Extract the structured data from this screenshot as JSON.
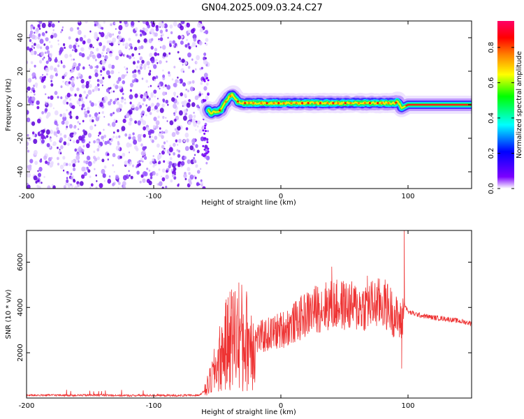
{
  "title": "GN04.2025.009.03.24.C27",
  "chart_data": [
    {
      "type": "heatmap",
      "xlabel": "Height of straight line (km)",
      "ylabel": "Frequency (Hz)",
      "xlim": [
        -200,
        150
      ],
      "ylim": [
        -50,
        50
      ],
      "x_ticks": [
        -200,
        -100,
        0,
        100
      ],
      "y_ticks": [
        -40,
        -20,
        0,
        20,
        40
      ],
      "noise_region_x": [
        -200,
        -57
      ],
      "signal_track": {
        "x": [
          -57,
          -55,
          -52,
          -50,
          -47,
          -45,
          -43,
          -40,
          -38,
          -36,
          -34,
          -30,
          -25,
          -20,
          -10,
          0,
          20,
          40,
          60,
          80,
          90,
          92,
          95,
          100,
          150
        ],
        "y": [
          -3,
          -5,
          -4,
          -4,
          -3,
          0,
          2,
          5,
          6,
          4,
          2,
          1,
          1,
          1,
          1,
          1,
          1,
          1,
          1,
          1,
          1,
          2,
          -2,
          0,
          0
        ]
      },
      "colorbar": {
        "label": "Normalized spectral amplitude",
        "range": [
          0,
          0.95
        ],
        "ticks": [
          "0.0",
          "0.2",
          "0.4",
          "0.6",
          "0.8"
        ],
        "colors": [
          "#ffffff",
          "#7b00ff",
          "#0000ff",
          "#00ffff",
          "#00ff00",
          "#ffff00",
          "#ff7f00",
          "#ff0000",
          "#ff0066"
        ]
      },
      "grid": false
    },
    {
      "type": "line",
      "xlabel": "Height of straight line (km)",
      "ylabel": "SNR (10 * v/v)",
      "xlim": [
        -200,
        150
      ],
      "ylim": [
        0,
        7400
      ],
      "x_ticks": [
        -200,
        -100,
        0,
        100
      ],
      "y_ticks": [
        2000,
        4000,
        6000
      ],
      "color": "#ee3333",
      "series": [
        {
          "x": [
            -200,
            -180,
            -160,
            -140,
            -120,
            -100,
            -80,
            -65,
            -60,
            -55,
            -50,
            -45,
            -40,
            -35,
            -30,
            -25,
            -20,
            -15,
            -10,
            -5,
            0,
            10,
            20,
            30,
            40,
            50,
            60,
            70,
            80,
            85,
            90,
            95,
            97,
            100,
            110,
            120,
            130,
            140,
            150
          ],
          "values": [
            120,
            130,
            120,
            130,
            110,
            120,
            110,
            120,
            300,
            800,
            1500,
            2100,
            2600,
            2800,
            2700,
            2500,
            2600,
            2700,
            2800,
            2900,
            3000,
            3300,
            3700,
            4000,
            4100,
            4100,
            4000,
            4100,
            4200,
            4000,
            3600,
            3300,
            4200,
            3800,
            3650,
            3550,
            3500,
            3400,
            3300
          ],
          "spikes": [
            {
              "x": -40,
              "value": 4700
            },
            {
              "x": -33,
              "value": 5100
            },
            {
              "x": -30,
              "value": 300
            },
            {
              "x": 40,
              "value": 5800
            },
            {
              "x": 68,
              "value": 5400
            },
            {
              "x": 97,
              "value": 7400
            },
            {
              "x": 95,
              "value": 1300
            }
          ]
        }
      ],
      "grid": false
    }
  ]
}
